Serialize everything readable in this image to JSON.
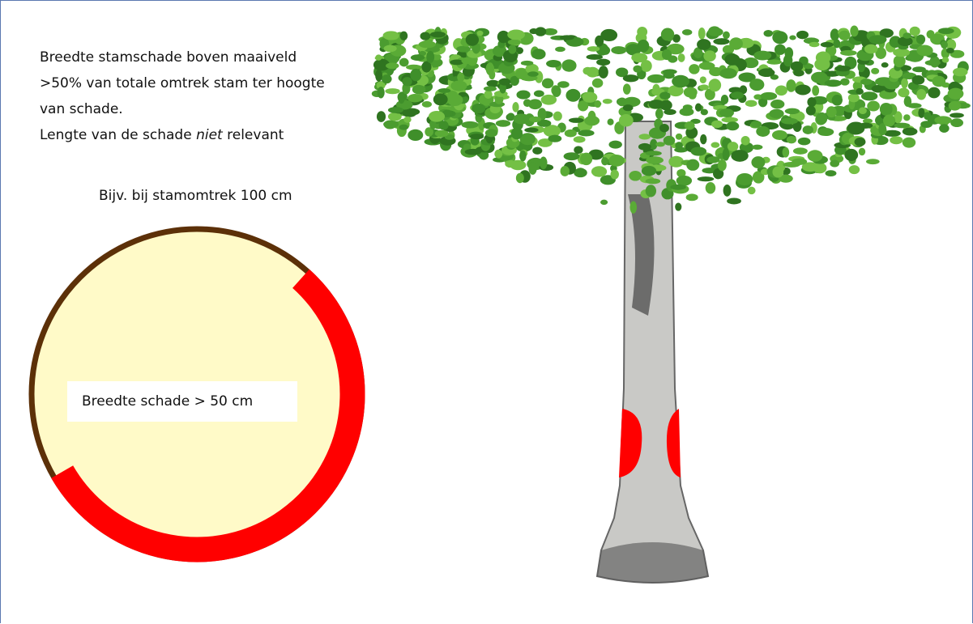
{
  "description": {
    "lines": [
      "Breedte stamschade boven maaiveld",
      ">50% van totale omtrek stam ter hoogte",
      "van schade."
    ],
    "last_line": {
      "before": "Lengte van de schade",
      "emphasis": "niet",
      "after": "relevant"
    }
  },
  "example": {
    "caption": "Bijv. bij stamomtrek 100 cm",
    "label": "Breedte schade > 50 cm"
  }
}
